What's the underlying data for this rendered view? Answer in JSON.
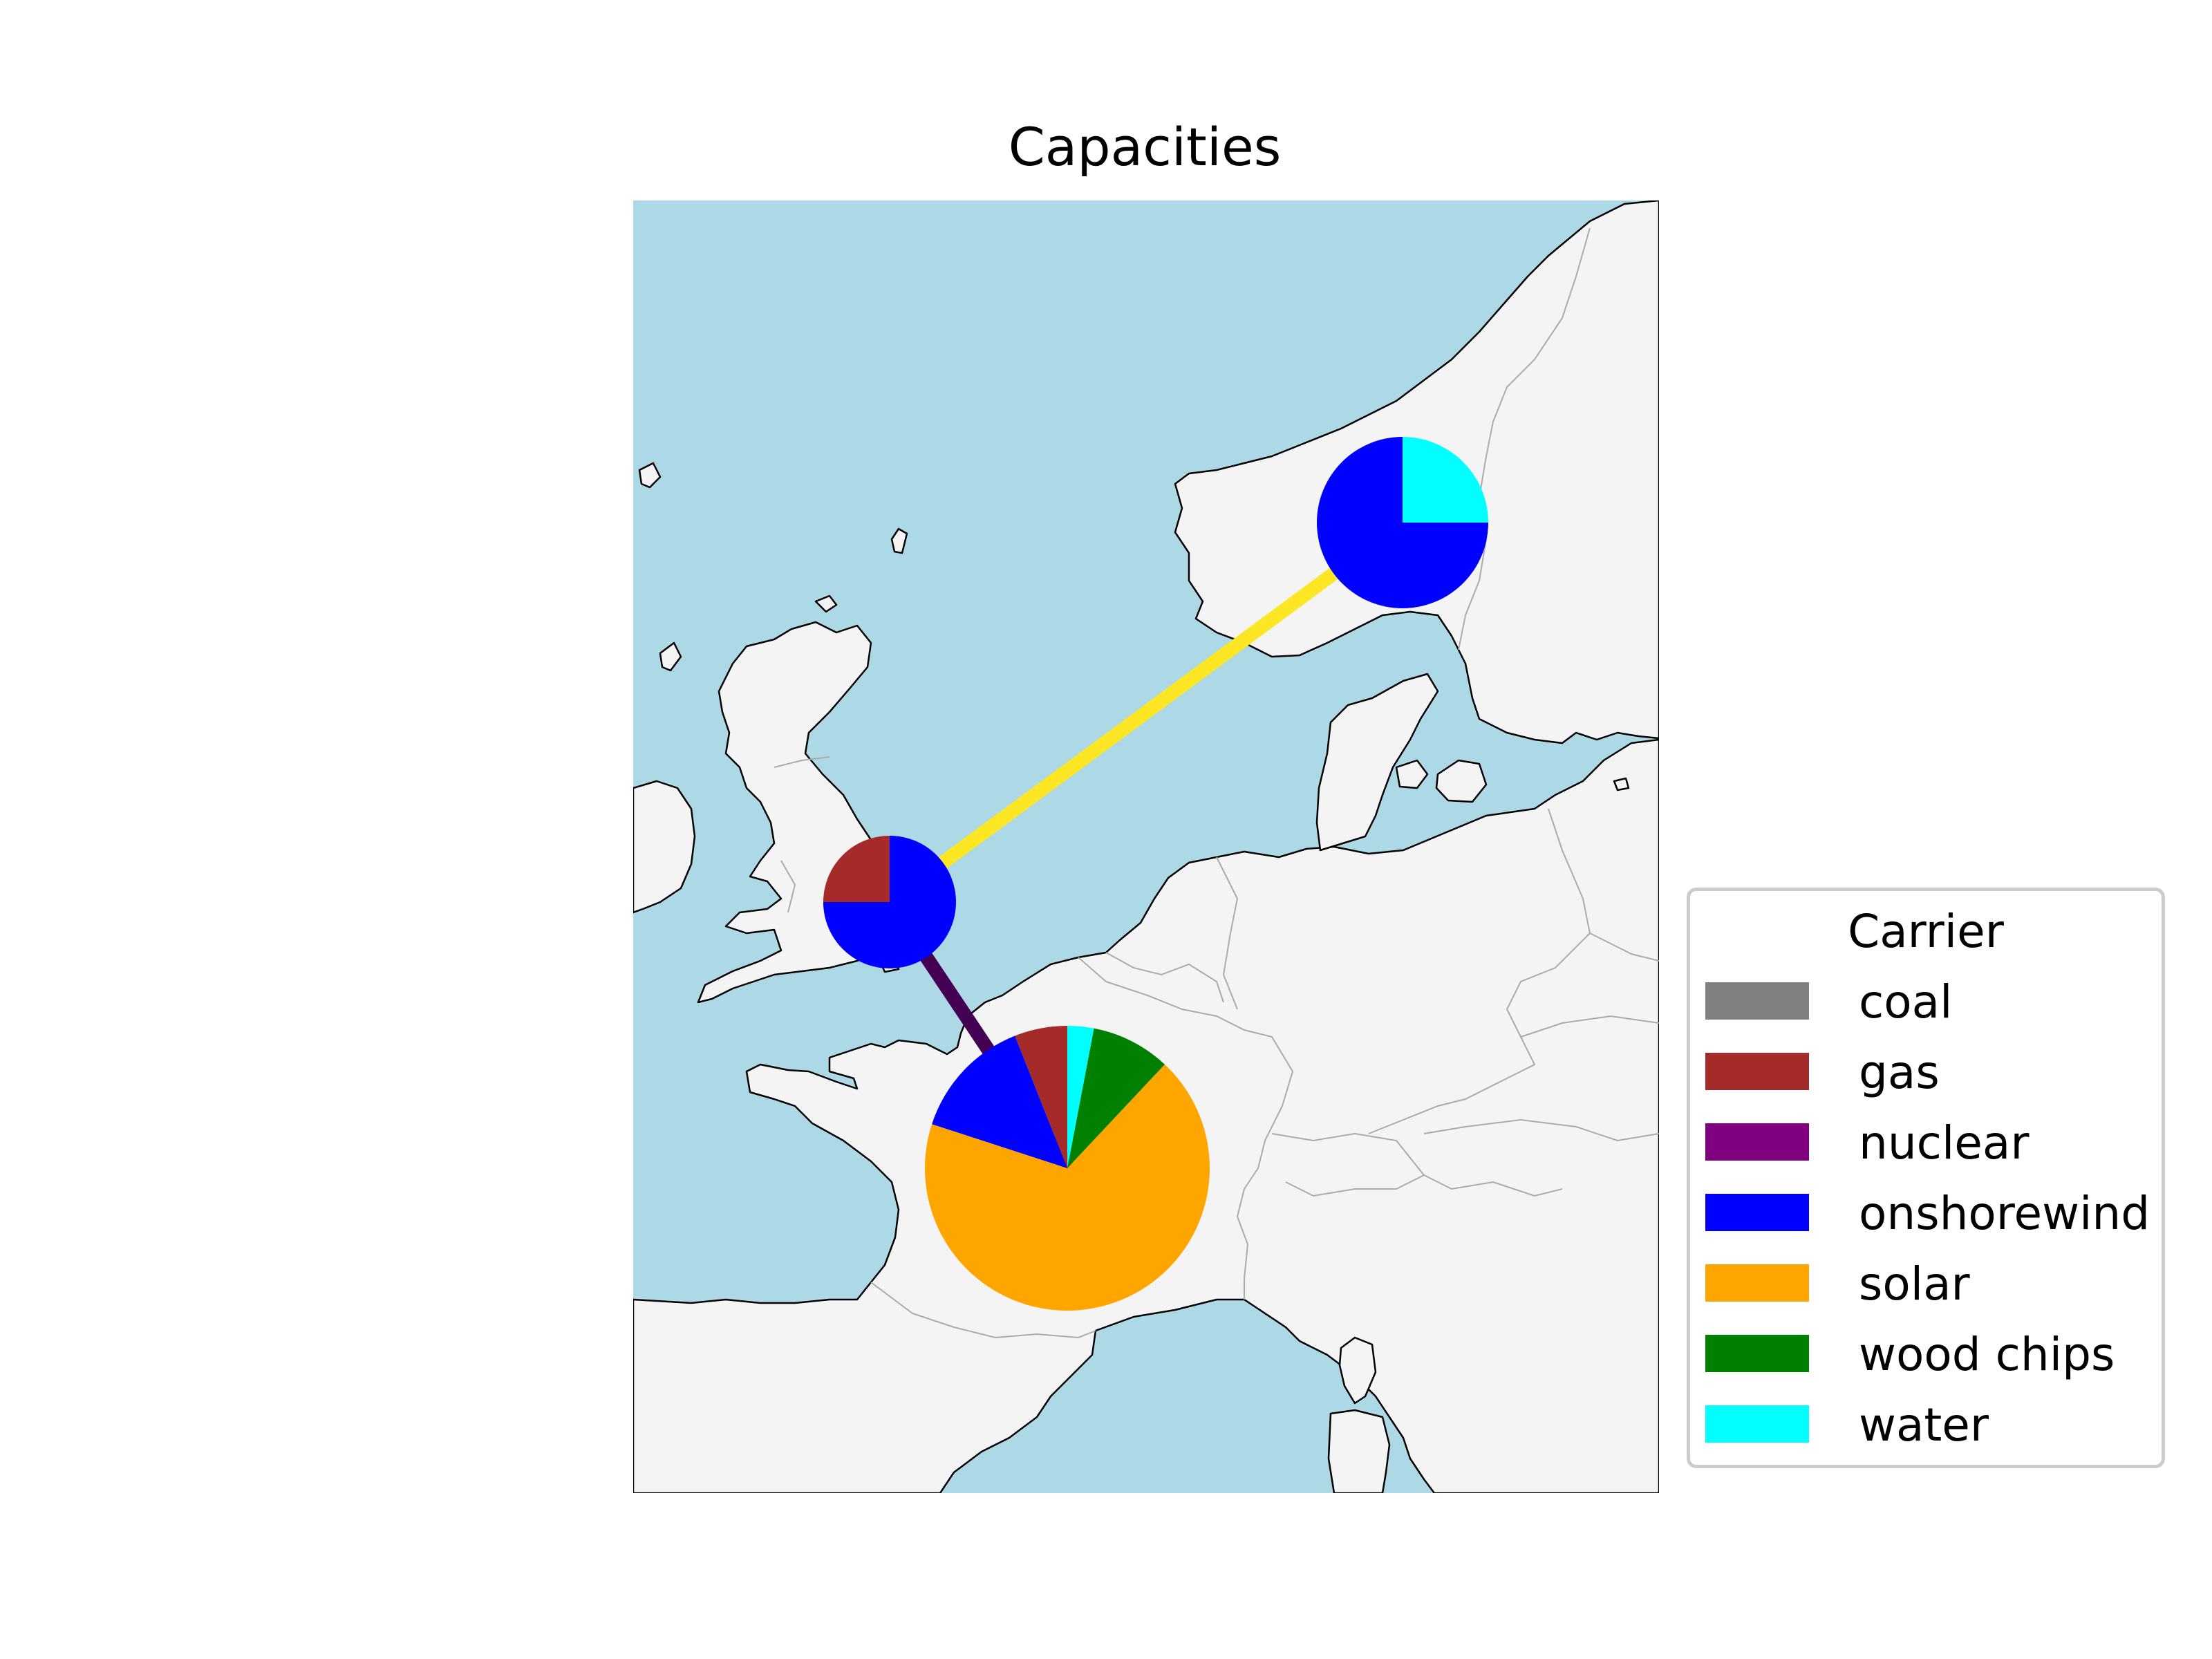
{
  "title": "Capacities",
  "map": {
    "sea_color": "#add8e6",
    "land_color": "#f4f4f4",
    "coastline_color": "#000000",
    "border_color": "#aaaaaa"
  },
  "links": [
    {
      "from": "Great Britain",
      "to": "Norway",
      "color": "#fde725"
    },
    {
      "from": "Great Britain",
      "to": "France",
      "color": "#440154"
    }
  ],
  "legend": {
    "title": "Carrier",
    "items": [
      {
        "label": "coal",
        "color": "#808080"
      },
      {
        "label": "gas",
        "color": "#a52a2a"
      },
      {
        "label": "nuclear",
        "color": "#800080"
      },
      {
        "label": "onshorewind",
        "color": "#0000ff"
      },
      {
        "label": "solar",
        "color": "#ffa500"
      },
      {
        "label": "wood chips",
        "color": "#008000"
      },
      {
        "label": "water",
        "color": "#00ffff"
      }
    ]
  },
  "chart_data": {
    "type": "pie",
    "title": "Capacities",
    "legend_title": "Carrier",
    "legend_placement": "right",
    "series": [
      {
        "name": "",
        "location": "Norway",
        "relative_size": 0.6,
        "values": {
          "onshorewind": 0.75,
          "water": 0.25
        }
      },
      {
        "name": "",
        "location": "Great Britain",
        "relative_size": 0.47,
        "values": {
          "gas": 0.25,
          "onshorewind": 0.75
        }
      },
      {
        "name": "",
        "location": "France",
        "relative_size": 1.0,
        "values": {
          "gas": 0.06,
          "onshorewind": 0.14,
          "solar": 0.68,
          "wood chips": 0.09,
          "water": 0.03
        }
      }
    ]
  }
}
